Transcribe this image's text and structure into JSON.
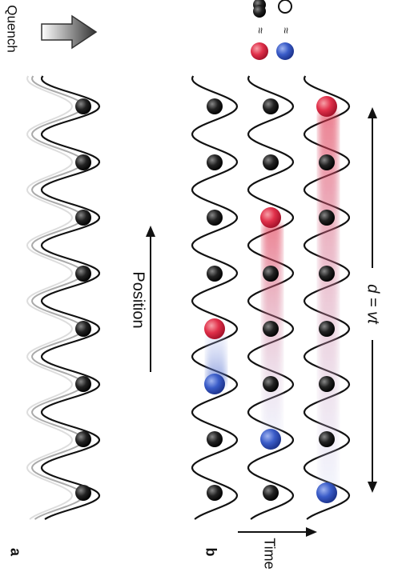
{
  "panel_a": {
    "label": "a",
    "quench": "Quench",
    "position": "Position"
  },
  "panel_b": {
    "label": "b",
    "time": "Time",
    "distance": "d = vt"
  },
  "legend": {
    "approx": [
      "≈",
      "≈"
    ]
  }
}
